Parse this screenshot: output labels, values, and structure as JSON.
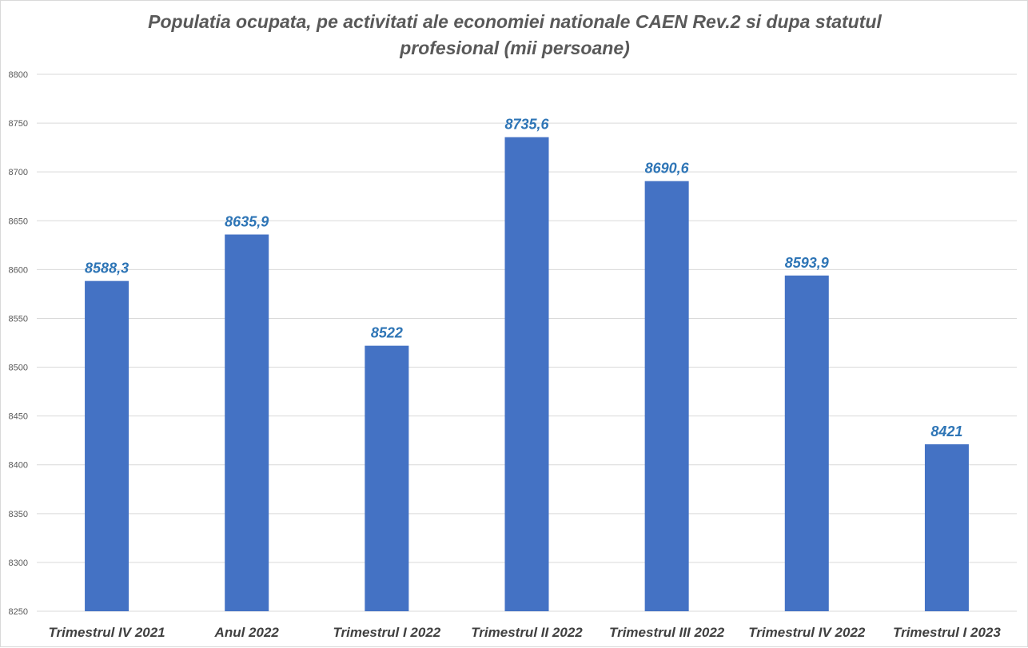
{
  "chart_data": {
    "type": "bar",
    "title_lines": [
      "Populatia ocupata, pe activitati ale economiei nationale CAEN Rev.2 si dupa statutul",
      "profesional (mii persoane)"
    ],
    "categories": [
      "Trimestrul IV 2021",
      "Anul 2022",
      "Trimestrul I 2022",
      "Trimestrul II 2022",
      "Trimestrul III 2022",
      "Trimestrul IV 2022",
      "Trimestrul I 2023"
    ],
    "values": [
      8588.3,
      8635.9,
      8522,
      8735.6,
      8690.6,
      8593.9,
      8421
    ],
    "data_labels": [
      "8588,3",
      "8635,9",
      "8522",
      "8735,6",
      "8690,6",
      "8593,9",
      "8421"
    ],
    "ylim": [
      8250,
      8800
    ],
    "yticks": [
      8250,
      8300,
      8350,
      8400,
      8450,
      8500,
      8550,
      8600,
      8650,
      8700,
      8750,
      8800
    ],
    "xlabel": "",
    "ylabel": "",
    "grid": true,
    "legend": "none",
    "bar_color": "#4472C4",
    "label_color": "#2E75B6",
    "grid_color": "#d9d9d9"
  }
}
